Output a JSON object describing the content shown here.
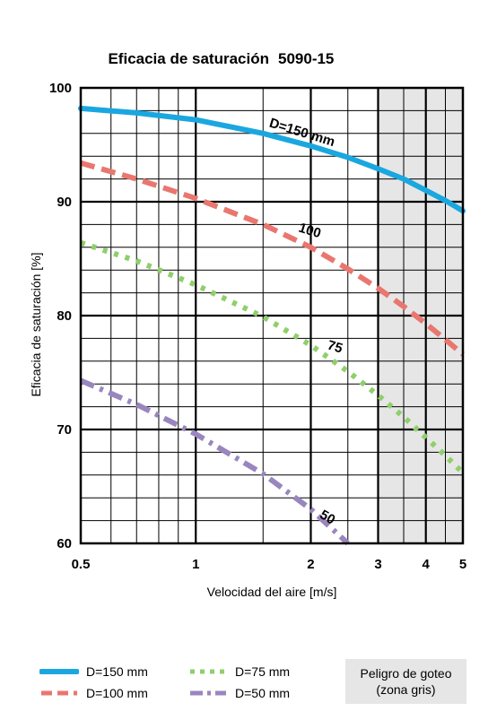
{
  "chart_data": {
    "type": "line",
    "title": "Eficacia de saturación",
    "model": "5090-15",
    "xlabel": "Velocidad del aire [m/s]",
    "ylabel": "Eficacia de saturación  [%]",
    "x_scale": "log",
    "xlim": [
      0.5,
      5
    ],
    "ylim": [
      60,
      100
    ],
    "x_ticks": [
      {
        "value": 0.5,
        "label": "0.5"
      },
      {
        "value": 1,
        "label": "1"
      },
      {
        "value": 2,
        "label": "2"
      },
      {
        "value": 3,
        "label": "3"
      },
      {
        "value": 4,
        "label": "4"
      },
      {
        "value": 5,
        "label": "5"
      }
    ],
    "y_ticks": [
      {
        "value": 60,
        "label": "60"
      },
      {
        "value": 70,
        "label": "70"
      },
      {
        "value": 80,
        "label": "80"
      },
      {
        "value": 90,
        "label": "90"
      },
      {
        "value": 100,
        "label": "100"
      }
    ],
    "grid": true,
    "shaded_region": {
      "x_from": 3,
      "x_to": 5,
      "label_line1": "Peligro de goteo",
      "label_line2": "(zona gris)",
      "color": "#e6e6e6"
    },
    "series": [
      {
        "name": "D=150 mm",
        "inline_label": "D=150 mm",
        "color": "#1aa7e0",
        "style": "solid",
        "x": [
          0.5,
          0.7,
          1,
          1.5,
          2,
          2.5,
          3,
          3.5,
          4,
          4.5,
          5
        ],
        "y": [
          98.2,
          97.8,
          97.2,
          96.0,
          94.9,
          93.9,
          92.9,
          92.0,
          91.0,
          90.1,
          89.2
        ]
      },
      {
        "name": "D=100 mm",
        "inline_label": "100",
        "color": "#e9776f",
        "style": "dash",
        "x": [
          0.5,
          0.7,
          1,
          1.5,
          2,
          2.5,
          3,
          3.5,
          4,
          4.5,
          5
        ],
        "y": [
          93.4,
          92.0,
          90.3,
          88.0,
          86.0,
          84.1,
          82.4,
          80.8,
          79.3,
          77.9,
          76.6
        ]
      },
      {
        "name": "D=75 mm",
        "inline_label": "75",
        "color": "#8fcf6b",
        "style": "dot",
        "x": [
          0.5,
          0.7,
          1,
          1.5,
          2,
          2.5,
          3,
          3.5,
          4,
          4.5,
          5
        ],
        "y": [
          86.4,
          84.8,
          82.7,
          79.9,
          77.4,
          75.1,
          73.0,
          71.1,
          69.3,
          67.7,
          66.2
        ]
      },
      {
        "name": "D=50 mm",
        "inline_label": "50",
        "color": "#9a86be",
        "style": "dashdot",
        "x": [
          0.5,
          0.7,
          1,
          1.5,
          2,
          2.5
        ],
        "y": [
          74.3,
          72.2,
          69.6,
          66.1,
          63.0,
          60.0
        ]
      }
    ]
  }
}
